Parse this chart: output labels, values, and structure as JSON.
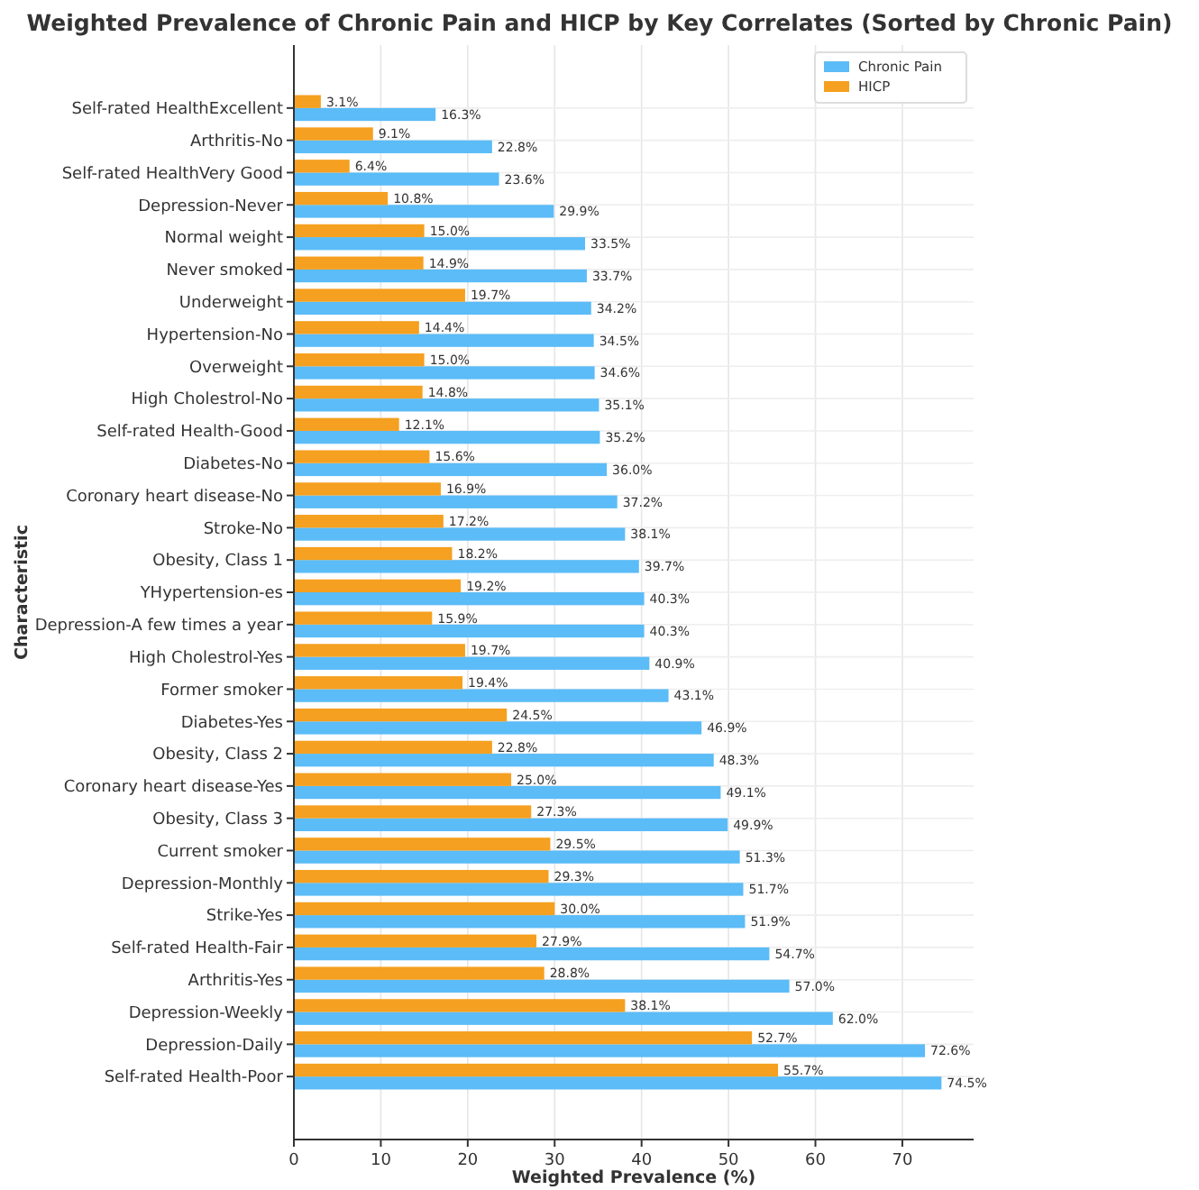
{
  "chart_data": {
    "type": "bar",
    "orientation": "horizontal",
    "title": "Weighted Prevalence of Chronic Pain and HICP by Key Correlates (Sorted by Chronic Pain)",
    "xlabel": "Weighted Prevalence (%)",
    "ylabel": "Characteristic",
    "categories": [
      "Self-rated HealthExcellent",
      "Arthritis-No",
      "Self-rated HealthVery Good",
      "Depression-Never",
      "Normal weight",
      "Never smoked",
      "Underweight",
      "Hypertension-No",
      "Overweight",
      "High Cholestrol-No",
      "Self-rated Health-Good",
      "Diabetes-No",
      "Coronary heart disease-No",
      "Stroke-No",
      "Obesity, Class 1",
      "YHypertension-es",
      "Depression-A few times a year",
      "High Cholestrol-Yes",
      "Former smoker",
      "Diabetes-Yes",
      "Obesity, Class 2",
      "Coronary heart disease-Yes",
      "Obesity, Class 3",
      "Current smoker",
      "Depression-Monthly",
      "Strike-Yes",
      "Self-rated Health-Fair",
      "Arthritis-Yes",
      "Depression-Weekly",
      "Depression-Daily",
      "Self-rated Health-Poor"
    ],
    "series": [
      {
        "name": "Chronic Pain",
        "color": "#5bbcf7",
        "values": [
          16.3,
          22.8,
          23.6,
          29.9,
          33.5,
          33.7,
          34.2,
          34.5,
          34.6,
          35.1,
          35.2,
          36.0,
          37.2,
          38.1,
          39.7,
          40.3,
          40.3,
          40.9,
          43.1,
          46.9,
          48.3,
          49.1,
          49.9,
          51.3,
          51.7,
          51.9,
          54.7,
          57.0,
          62.0,
          72.6,
          74.5
        ],
        "value_labels": [
          "16.3%",
          "22.8%",
          "23.6%",
          "29.9%",
          "33.5%",
          "33.7%",
          "34.2%",
          "34.5%",
          "34.6%",
          "35.1%",
          "35.2%",
          "36.0%",
          "37.2%",
          "38.1%",
          "39.7%",
          "40.3%",
          "40.3%",
          "40.9%",
          "43.1%",
          "46.9%",
          "48.3%",
          "49.1%",
          "49.9%",
          "51.3%",
          "51.7%",
          "51.9%",
          "54.7%",
          "57.0%",
          "62.0%",
          "72.6%",
          "74.5%"
        ]
      },
      {
        "name": "HICP",
        "color": "#f5a020",
        "values": [
          3.1,
          9.1,
          6.4,
          10.8,
          15.0,
          14.9,
          19.7,
          14.4,
          15.0,
          14.8,
          12.1,
          15.6,
          16.9,
          17.2,
          18.2,
          19.2,
          15.9,
          19.7,
          19.4,
          24.5,
          22.8,
          25.0,
          27.3,
          29.5,
          29.3,
          30.0,
          27.9,
          28.8,
          38.1,
          52.7,
          55.7
        ],
        "value_labels": [
          "3.1%",
          "9.1%",
          "6.4%",
          "10.8%",
          "15.0%",
          "14.9%",
          "19.7%",
          "14.4%",
          "15.0%",
          "14.8%",
          "12.1%",
          "15.6%",
          "16.9%",
          "17.2%",
          "18.2%",
          "19.2%",
          "15.9%",
          "19.7%",
          "19.4%",
          "24.5%",
          "22.8%",
          "25.0%",
          "27.3%",
          "29.5%",
          "29.3%",
          "30.0%",
          "27.9%",
          "28.8%",
          "38.1%",
          "52.7%",
          "55.7%"
        ]
      }
    ],
    "xlim": [
      0,
      78.2
    ],
    "xticks": [
      0,
      10,
      20,
      30,
      40,
      50,
      60,
      70
    ],
    "grid": true,
    "legend": "top right"
  }
}
